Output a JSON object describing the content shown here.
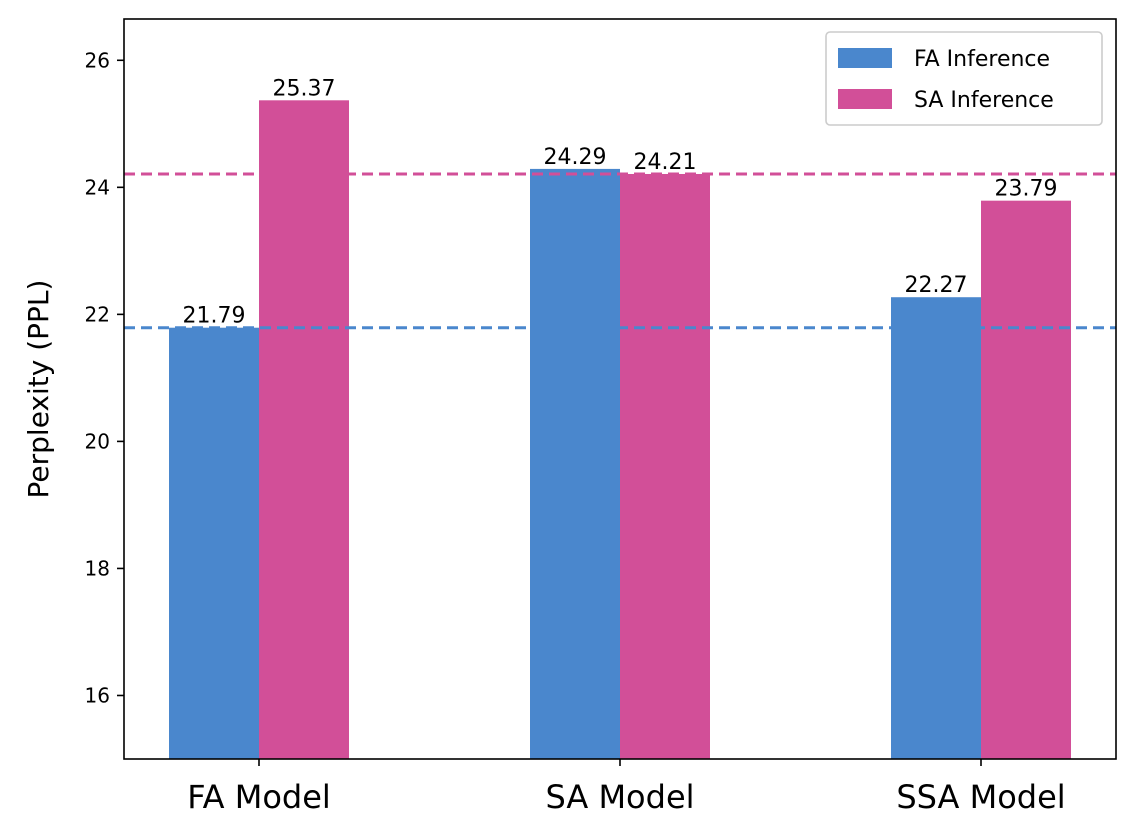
{
  "chart_data": {
    "type": "bar",
    "title": "",
    "xlabel": "",
    "ylabel": "Perplexity (PPL)",
    "categories": [
      "FA Model",
      "SA Model",
      "SSA Model"
    ],
    "series": [
      {
        "name": "FA Inference",
        "color": "#4a87cd",
        "values": [
          21.79,
          24.29,
          22.27
        ],
        "labels": [
          "21.79",
          "24.29",
          "22.27"
        ]
      },
      {
        "name": "SA Inference",
        "color": "#d24f98",
        "values": [
          25.37,
          24.21,
          23.79
        ],
        "labels": [
          "25.37",
          "24.21",
          "23.79"
        ]
      }
    ],
    "ylim": [
      15.0,
      26.65
    ],
    "yticks": [
      16,
      18,
      20,
      22,
      24,
      26
    ],
    "reference_lines": [
      {
        "series": "FA Inference",
        "value": 21.79,
        "style": "dashed"
      },
      {
        "series": "SA Inference",
        "value": 24.21,
        "style": "dashed"
      }
    ],
    "legend": {
      "position": "top-right"
    },
    "grid": false
  }
}
